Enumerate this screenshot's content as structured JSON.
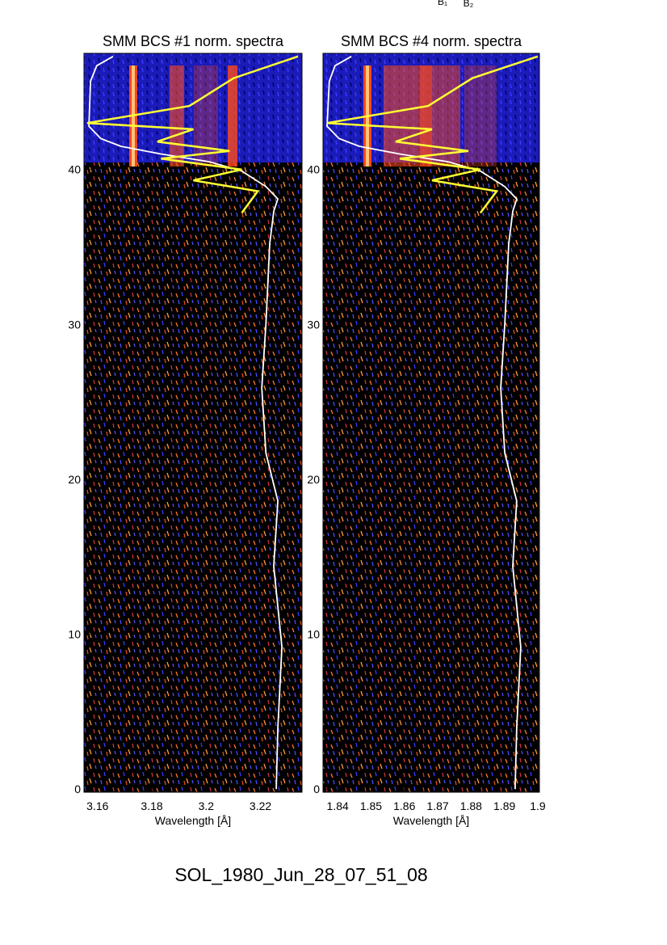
{
  "top_labels": [
    "B₁",
    "B₂"
  ],
  "footer": "SOL_1980_Jun_28_07_51_08",
  "chart_data": [
    {
      "type": "line",
      "title": "SMM BCS #1 norm. spectra",
      "x_label": "Wavelength [Å]",
      "xlim": [
        3.155,
        3.2353
      ],
      "xticks": [
        3.16,
        3.18,
        3.2,
        3.22
      ],
      "ylim": [
        -0.2,
        47.5
      ],
      "yticks": [
        0,
        10,
        20,
        30,
        40
      ],
      "series": [
        {
          "color": "#ffffff",
          "x": [
            3.2258,
            3.2264,
            3.2279,
            3.2249,
            3.2264,
            3.222,
            3.2205,
            3.222,
            3.2234,
            3.2249,
            3.2264,
            3.222,
            3.2131,
            3.2012,
            3.1834,
            3.1686,
            3.1612,
            3.1568,
            3.1574,
            3.1597,
            3.1657
          ],
          "values": [
            0,
            3.96,
            9.18,
            14.4,
            18.6,
            21.7,
            25.9,
            30.0,
            35.2,
            37.3,
            38.1,
            38.9,
            39.9,
            40.5,
            41.0,
            41.5,
            42.0,
            42.8,
            45.7,
            46.7,
            47.3
          ]
        },
        {
          "color": "#ffff33",
          "x": [
            3.2338,
            3.2101,
            3.1938,
            3.1562,
            3.1953,
            3.182,
            3.2086,
            3.1834,
            3.2131,
            3.1953,
            3.219,
            3.2131
          ],
          "values": [
            47.3,
            45.9,
            44.1,
            43.0,
            42.6,
            41.8,
            41.2,
            40.7,
            40.0,
            39.3,
            38.6,
            37.2
          ]
        }
      ]
    },
    {
      "type": "line",
      "title": "SMM BCS #4 norm. spectra",
      "x_label": "Wavelength [Å]",
      "xlim": [
        1.8356,
        1.9005
      ],
      "xticks": [
        1.84,
        1.85,
        1.86,
        1.87,
        1.88,
        1.89,
        1.9
      ],
      "ylim": [
        -0.2,
        47.5
      ],
      "yticks": [
        0,
        10,
        20,
        30,
        40
      ],
      "series": [
        {
          "color": "#ffffff",
          "x": [
            1.8932,
            1.8937,
            1.8949,
            1.8925,
            1.8937,
            1.8901,
            1.8889,
            1.8901,
            1.8913,
            1.8925,
            1.8937,
            1.8901,
            1.8828,
            1.8731,
            1.8586,
            1.8465,
            1.8404,
            1.8368,
            1.8375,
            1.8392,
            1.8441
          ],
          "values": [
            0,
            3.96,
            9.18,
            14.4,
            18.6,
            21.7,
            25.9,
            30.0,
            35.2,
            37.3,
            38.1,
            38.9,
            39.9,
            40.5,
            41.0,
            41.5,
            42.0,
            42.8,
            45.7,
            46.7,
            47.3
          ]
        },
        {
          "color": "#ffff33",
          "x": [
            1.9,
            1.8804,
            1.8671,
            1.8368,
            1.8683,
            1.8574,
            1.8792,
            1.8586,
            1.8828,
            1.8683,
            1.8877,
            1.8828
          ],
          "values": [
            47.3,
            45.9,
            44.1,
            43.0,
            42.6,
            41.8,
            41.2,
            40.7,
            40.0,
            39.3,
            38.6,
            37.2
          ]
        }
      ]
    }
  ]
}
